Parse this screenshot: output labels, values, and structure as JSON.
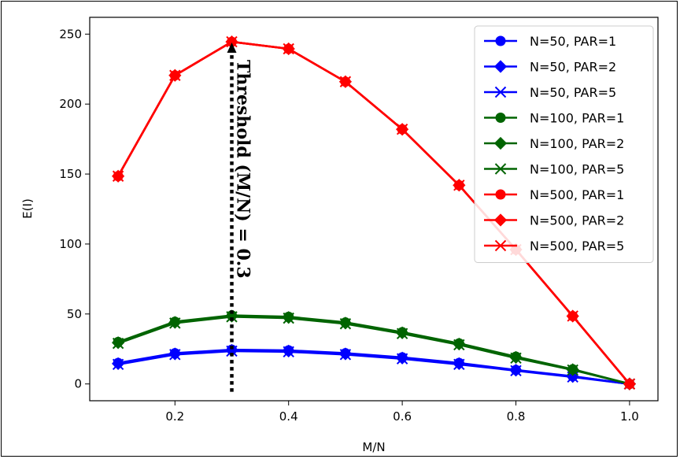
{
  "chart_data": {
    "type": "line",
    "xlabel": "M/N",
    "ylabel": "E(I)",
    "xlim": [
      0.05,
      1.05
    ],
    "ylim": [
      -12,
      262
    ],
    "xticks": [
      0.2,
      0.4,
      0.6,
      0.8,
      1.0
    ],
    "xtick_labels": [
      "0.2",
      "0.4",
      "0.6",
      "0.8",
      "1.0"
    ],
    "yticks": [
      0,
      50,
      100,
      150,
      200,
      250
    ],
    "ytick_labels": [
      "0",
      "50",
      "100",
      "150",
      "200",
      "250"
    ],
    "x": [
      0.1,
      0.2,
      0.3,
      0.4,
      0.5,
      0.6,
      0.7,
      0.8,
      0.9,
      1.0
    ],
    "grid": false,
    "legend_position": "top-right",
    "series": [
      {
        "name": "N=50, PAR=1",
        "color": "#0000ff",
        "marker": "circle",
        "values": [
          15,
          22,
          24.5,
          24,
          22,
          19,
          15,
          10,
          5.5,
          0
        ]
      },
      {
        "name": "N=50, PAR=2",
        "color": "#0000ff",
        "marker": "diamond",
        "values": [
          14.5,
          21.5,
          24,
          23.5,
          21.5,
          18.5,
          14.5,
          9.8,
          5.3,
          0
        ]
      },
      {
        "name": "N=50, PAR=5",
        "color": "#0000ff",
        "marker": "x",
        "values": [
          14,
          21,
          23.5,
          23,
          21,
          18,
          14,
          9.5,
          5,
          0
        ]
      },
      {
        "name": "N=100, PAR=1",
        "color": "#006400",
        "marker": "circle",
        "values": [
          30,
          44.5,
          49,
          48,
          44,
          37,
          29,
          19.5,
          10.5,
          0
        ]
      },
      {
        "name": "N=100, PAR=2",
        "color": "#006400",
        "marker": "diamond",
        "values": [
          29.5,
          44,
          48.5,
          47.5,
          43.5,
          36.5,
          28.5,
          19,
          10.2,
          0
        ]
      },
      {
        "name": "N=100, PAR=5",
        "color": "#006400",
        "marker": "x",
        "values": [
          29,
          43.5,
          48,
          47,
          43,
          36,
          28,
          18.5,
          10,
          0
        ]
      },
      {
        "name": "N=500, PAR=1",
        "color": "#ff0000",
        "marker": "circle",
        "values": [
          148.5,
          220.5,
          244.5,
          239.5,
          216,
          182,
          142,
          96,
          48.5,
          0
        ]
      },
      {
        "name": "N=500, PAR=2",
        "color": "#ff0000",
        "marker": "diamond",
        "values": [
          148.5,
          220.5,
          244.5,
          239.5,
          216,
          182,
          142,
          96,
          48.5,
          0
        ]
      },
      {
        "name": "N=500, PAR=5",
        "color": "#ff0000",
        "marker": "x",
        "values": [
          148.5,
          220.5,
          244.5,
          239.5,
          216,
          182,
          142,
          96,
          48.5,
          0
        ]
      }
    ],
    "annotations": [
      {
        "text": "Threshold (M/N) = 0.3",
        "x": 0.3,
        "y_from": 0,
        "y_to": 244,
        "style": "dotted-arrow",
        "color": "#000000"
      }
    ]
  }
}
